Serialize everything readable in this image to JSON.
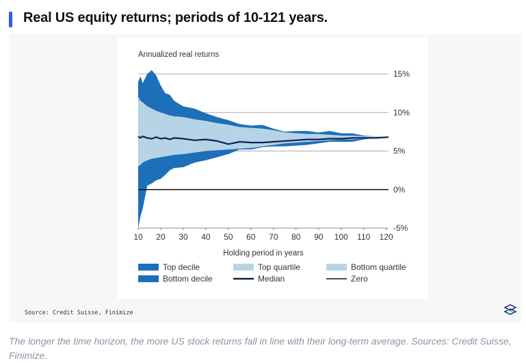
{
  "heading": "Real US equity returns; periods of 10-121 years.",
  "source": "Source: Credit Suisse, Finimize",
  "caption": "The longer the time horizon, the more US stock returns fall in line with their long-term average. Sources: Credit Suisse, Finimize.",
  "colors": {
    "accent": "#2d5bff",
    "decile": "#1d6fb8",
    "quartile": "#b7d3e6",
    "median": "#0c2350",
    "zero": "#111111",
    "caption": "#8a93a6"
  },
  "chart_data": {
    "type": "area",
    "title": "Annualized real returns",
    "xlabel": "Holding period in years",
    "ylabel": "",
    "xlim": [
      10,
      121
    ],
    "ylim": [
      -5,
      15
    ],
    "x_ticks": [
      "10",
      "20",
      "30",
      "40",
      "50",
      "60",
      "70",
      "80",
      "90",
      "100",
      "110",
      "120"
    ],
    "y_ticks": [
      "15%",
      "10%",
      "5%",
      "0%",
      "-5%"
    ],
    "grid": "horizontal",
    "x": [
      10,
      11,
      12,
      14,
      16,
      18,
      20,
      22,
      24,
      26,
      30,
      35,
      40,
      45,
      50,
      55,
      60,
      65,
      70,
      75,
      80,
      85,
      90,
      95,
      100,
      105,
      110,
      115,
      121
    ],
    "series": [
      {
        "name": "Top decile",
        "values": [
          14.0,
          14.7,
          13.8,
          15.0,
          15.5,
          14.8,
          13.5,
          12.5,
          12.3,
          11.5,
          10.8,
          10.5,
          9.9,
          9.4,
          9.0,
          8.5,
          8.3,
          8.4,
          7.9,
          7.5,
          7.6,
          7.6,
          7.4,
          7.6,
          7.3,
          7.3,
          7.0,
          6.9,
          6.8
        ]
      },
      {
        "name": "Top quartile",
        "values": [
          12.0,
          11.5,
          11.3,
          10.8,
          10.5,
          10.2,
          10.0,
          9.8,
          9.6,
          9.5,
          9.4,
          9.1,
          8.9,
          8.6,
          8.4,
          8.1,
          8.0,
          7.9,
          7.7,
          7.4,
          7.3,
          7.2,
          7.2,
          7.1,
          7.0,
          7.0,
          6.9,
          6.9,
          6.8
        ]
      },
      {
        "name": "Median",
        "values": [
          6.9,
          6.7,
          6.9,
          6.7,
          6.6,
          6.8,
          6.6,
          6.7,
          6.5,
          6.7,
          6.6,
          6.4,
          6.5,
          6.3,
          5.9,
          6.2,
          6.1,
          6.1,
          6.2,
          6.3,
          6.4,
          6.5,
          6.5,
          6.6,
          6.6,
          6.7,
          6.7,
          6.7,
          6.8
        ]
      },
      {
        "name": "Bottom quartile",
        "values": [
          3.0,
          3.2,
          3.5,
          3.8,
          4.0,
          4.1,
          4.2,
          4.3,
          4.4,
          4.5,
          4.6,
          4.8,
          5.0,
          5.1,
          5.2,
          5.3,
          5.4,
          5.6,
          5.8,
          6.0,
          6.1,
          6.2,
          6.3,
          6.4,
          6.5,
          6.5,
          6.6,
          6.6,
          6.7
        ]
      },
      {
        "name": "Bottom decile",
        "values": [
          -5.0,
          -3.5,
          -2.5,
          0.5,
          0.8,
          1.2,
          1.4,
          1.9,
          2.5,
          2.8,
          2.9,
          3.5,
          3.8,
          4.2,
          4.6,
          5.2,
          5.2,
          5.5,
          5.6,
          5.6,
          5.7,
          5.8,
          6.0,
          6.2,
          6.2,
          6.2,
          6.5,
          6.7,
          6.7
        ]
      },
      {
        "name": "Zero",
        "values": [
          0,
          0,
          0,
          0,
          0,
          0,
          0,
          0,
          0,
          0,
          0,
          0,
          0,
          0,
          0,
          0,
          0,
          0,
          0,
          0,
          0,
          0,
          0,
          0,
          0,
          0,
          0,
          0,
          0
        ]
      }
    ],
    "legend": {
      "placement": "bottom",
      "items": [
        {
          "label": "Top decile",
          "style": "decile"
        },
        {
          "label": "Top quartile",
          "style": "quartile"
        },
        {
          "label": "Bottom quartile",
          "style": "quartile"
        },
        {
          "label": "Bottom decile",
          "style": "decile"
        },
        {
          "label": "Median",
          "style": "median"
        },
        {
          "label": "Zero",
          "style": "zero"
        }
      ]
    }
  }
}
